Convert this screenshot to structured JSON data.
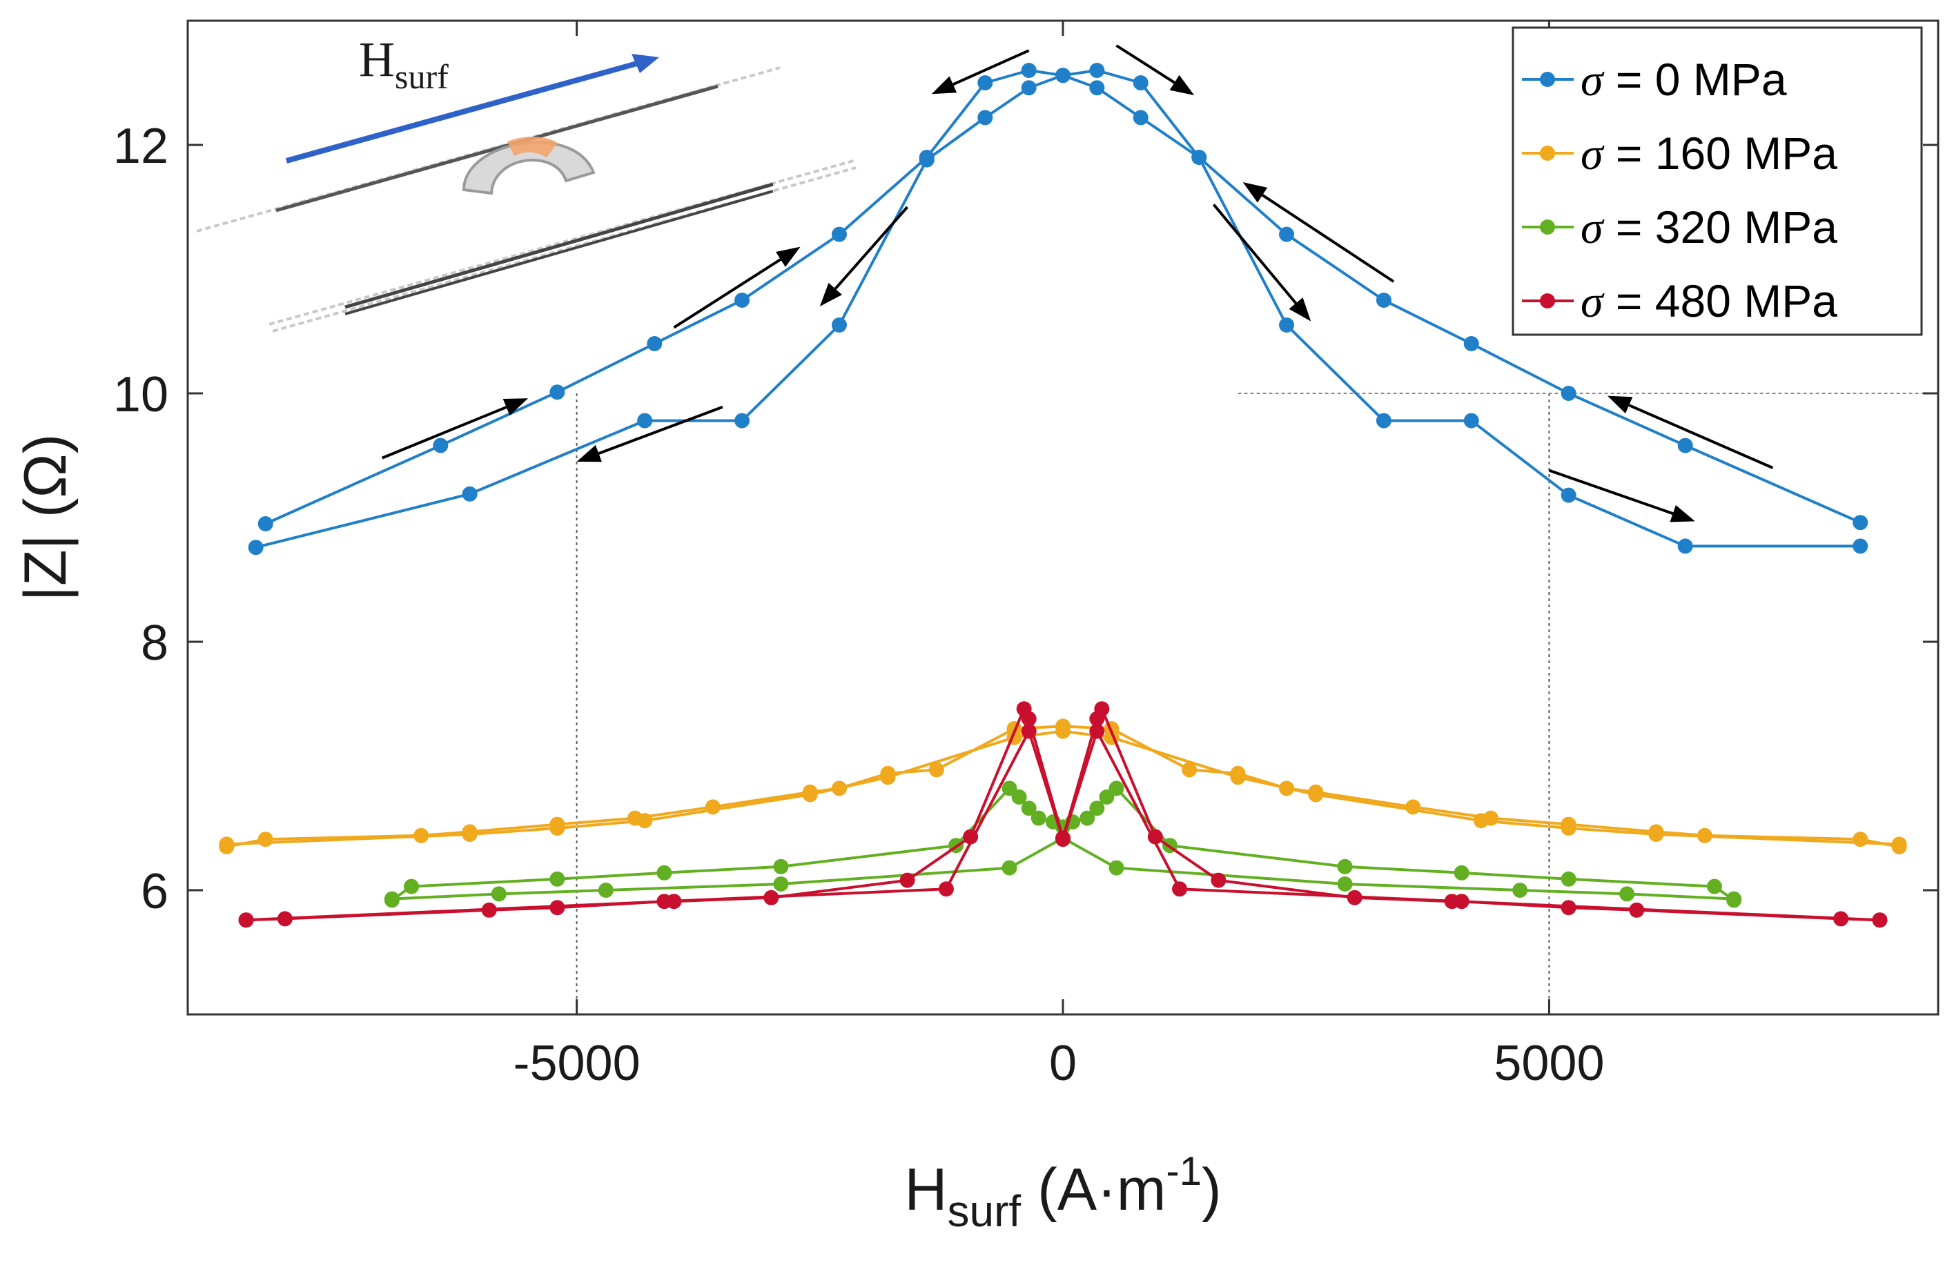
{
  "chart_data": {
    "type": "line",
    "title": "",
    "xlabel": {
      "main": "H",
      "sub": "surf",
      "unit_open": " (A·m",
      "sup": "-1",
      "unit_close": ")"
    },
    "ylabel": "|Z| (Ω)",
    "xlim": [
      -9000,
      9000
    ],
    "ylim": [
      5,
      13
    ],
    "x_ticks": [
      -5000,
      0,
      5000
    ],
    "x_tick_labels": [
      "-5000",
      "0",
      "5000"
    ],
    "y_ticks": [
      6,
      8,
      10,
      12
    ],
    "y_tick_labels": [
      "6",
      "8",
      "10",
      "12"
    ],
    "grid": false,
    "legend_position": "top-right",
    "reference_lines_x": [
      -5000,
      5000
    ],
    "reference_line_y": 10,
    "inset_label": {
      "main": "H",
      "sub": "surf"
    },
    "series": [
      {
        "name": "σ = 0 MPa",
        "legend": {
          "sym": "σ",
          "rest": " = 0 MPa"
        },
        "color": "#1f7fc8",
        "branches": [
          {
            "x": [
              -8200,
              -6400,
              -5200,
              -4200,
              -3300,
              -2300,
              -1400,
              -800,
              -350,
              0,
              350,
              800,
              1400,
              2300,
              3300,
              4200,
              5200,
              6400,
              8200
            ],
            "y": [
              8.95,
              9.58,
              10.01,
              10.4,
              10.75,
              11.28,
              11.9,
              12.5,
              12.6,
              12.56,
              12.46,
              12.22,
              11.9,
              10.55,
              9.78,
              9.78,
              9.18,
              8.77,
              8.77
            ]
          },
          {
            "x": [
              8200,
              6400,
              5200,
              4200,
              3300,
              2300,
              1400,
              800,
              350,
              0,
              -350,
              -800,
              -1400,
              -2300,
              -3300,
              -4300,
              -6100,
              -8300
            ],
            "y": [
              8.96,
              9.58,
              10.0,
              10.4,
              10.75,
              11.28,
              11.9,
              12.5,
              12.6,
              12.56,
              12.46,
              12.22,
              11.88,
              10.55,
              9.78,
              9.78,
              9.19,
              8.76
            ]
          }
        ]
      },
      {
        "name": "σ = 160 MPa",
        "legend": {
          "sym": "σ",
          "rest": " = 160 MPa"
        },
        "color": "#f0a81c",
        "branches": [
          {
            "x": [
              -8600,
              -8200,
              -6600,
              -6100,
              -5200,
              -4400,
              -3600,
              -2600,
              -2300,
              -1800,
              -1300,
              -500,
              0,
              500,
              1300,
              1800,
              2300,
              2600,
              3600,
              4400,
              5200,
              6100,
              6600,
              8200,
              8600
            ],
            "y": [
              6.35,
              6.41,
              6.44,
              6.47,
              6.53,
              6.58,
              6.67,
              6.79,
              6.82,
              6.94,
              6.97,
              7.3,
              7.32,
              7.3,
              6.97,
              6.94,
              6.82,
              6.79,
              6.67,
              6.58,
              6.53,
              6.47,
              6.44,
              6.41,
              6.35
            ]
          },
          {
            "x": [
              -8600,
              -6100,
              -5200,
              -4300,
              -2600,
              -1800,
              -500,
              0,
              500,
              1800,
              2600,
              4300,
              5200,
              6100,
              8600
            ],
            "y": [
              6.37,
              6.45,
              6.5,
              6.56,
              6.77,
              6.91,
              7.23,
              7.28,
              7.23,
              6.91,
              6.77,
              6.56,
              6.5,
              6.45,
              6.37
            ]
          }
        ]
      },
      {
        "name": "σ = 320 MPa",
        "legend": {
          "sym": "σ",
          "rest": " = 320 MPa"
        },
        "color": "#62b021",
        "branches": [
          {
            "x": [
              -6900,
              -6700,
              -5200,
              -4100,
              -2900,
              -1100,
              -550,
              -450,
              -350,
              -250,
              -100,
              0,
              100,
              250,
              350,
              450,
              550,
              1100,
              2900,
              4100,
              5200,
              6700,
              6900
            ],
            "y": [
              5.92,
              6.03,
              6.09,
              6.14,
              6.19,
              6.36,
              6.82,
              6.75,
              6.66,
              6.58,
              6.55,
              6.51,
              6.55,
              6.58,
              6.66,
              6.75,
              6.82,
              6.36,
              6.19,
              6.14,
              6.09,
              6.03,
              5.92
            ]
          },
          {
            "x": [
              -6900,
              -5800,
              -4700,
              -2900,
              -550,
              0,
              550,
              2900,
              4700,
              5800,
              6900
            ],
            "y": [
              5.93,
              5.97,
              6.0,
              6.05,
              6.18,
              6.42,
              6.18,
              6.05,
              6.0,
              5.97,
              5.93
            ]
          }
        ]
      },
      {
        "name": "σ = 480 MPa",
        "legend": {
          "sym": "σ",
          "rest": " = 480 MPa"
        },
        "color": "#c8102e",
        "branches": [
          {
            "x": [
              -8400,
              -8000,
              -5900,
              -5200,
              -4100,
              -4000,
              -3000,
              -1600,
              -950,
              -400,
              -350,
              0,
              350,
              400,
              950,
              1600,
              3000,
              4000,
              4100,
              5200,
              5900,
              8000,
              8400
            ],
            "y": [
              5.76,
              5.77,
              5.84,
              5.86,
              5.91,
              5.91,
              5.94,
              6.08,
              6.43,
              7.46,
              7.38,
              6.42,
              7.38,
              7.46,
              6.43,
              6.08,
              5.94,
              5.91,
              5.91,
              5.86,
              5.84,
              5.77,
              5.76
            ]
          },
          {
            "x": [
              -8400,
              -1200,
              -350,
              0,
              350,
              1200,
              8400
            ],
            "y": [
              5.76,
              6.01,
              7.28,
              6.41,
              7.28,
              6.01,
              5.76
            ]
          }
        ]
      }
    ],
    "arrows": [
      {
        "from": [
          -7000,
          9.48
        ],
        "to": [
          -5500,
          9.96
        ]
      },
      {
        "from": [
          -3500,
          9.89
        ],
        "to": [
          -5000,
          9.45
        ]
      },
      {
        "from": [
          -4000,
          10.53
        ],
        "to": [
          -2700,
          11.18
        ]
      },
      {
        "from": [
          -1600,
          11.5
        ],
        "to": [
          -2500,
          10.7
        ]
      },
      {
        "from": [
          -350,
          12.76
        ],
        "to": [
          -1350,
          12.41
        ]
      },
      {
        "from": [
          550,
          12.8
        ],
        "to": [
          1350,
          12.4
        ]
      },
      {
        "from": [
          3400,
          10.9
        ],
        "to": [
          1850,
          11.7
        ]
      },
      {
        "from": [
          1550,
          11.52
        ],
        "to": [
          2550,
          10.58
        ]
      },
      {
        "from": [
          7300,
          9.4
        ],
        "to": [
          5600,
          9.98
        ]
      },
      {
        "from": [
          5000,
          9.38
        ],
        "to": [
          6500,
          8.97
        ]
      }
    ]
  }
}
